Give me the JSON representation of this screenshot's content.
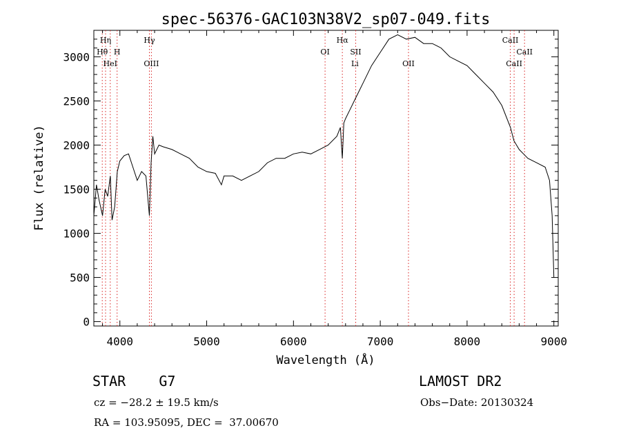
{
  "chart_data": {
    "type": "line",
    "title": "spec-56376-GAC103N38V2_sp07-049.fits",
    "xlabel": "Wavelength (Å)",
    "ylabel": "Flux (relative)",
    "xlim": [
      3700,
      9050
    ],
    "ylim": [
      -50,
      3300
    ],
    "xticks": [
      4000,
      5000,
      6000,
      7000,
      8000,
      9000
    ],
    "yticks": [
      0,
      500,
      1000,
      1500,
      2000,
      2500,
      3000
    ],
    "series": [
      {
        "x": [
          3700,
          3730,
          3760,
          3800,
          3830,
          3860,
          3890,
          3910,
          3940,
          3970,
          4000,
          4050,
          4100,
          4150,
          4200,
          4250,
          4300,
          4340,
          4360,
          4380,
          4400,
          4450,
          4500,
          4600,
          4700,
          4800,
          4900,
          5000,
          5100,
          5170,
          5200,
          5300,
          5400,
          5500,
          5600,
          5700,
          5800,
          5900,
          6000,
          6100,
          6200,
          6300,
          6400,
          6500,
          6540,
          6563,
          6580,
          6600,
          6650,
          6700,
          6750,
          6800,
          6900,
          7000,
          7100,
          7200,
          7300,
          7400,
          7500,
          7600,
          7700,
          7800,
          7900,
          8000,
          8100,
          8200,
          8300,
          8400,
          8500,
          8540,
          8600,
          8650,
          8700,
          8800,
          8900,
          8950,
          8980,
          9000
        ],
        "y": [
          1200,
          1550,
          1380,
          1200,
          1500,
          1420,
          1650,
          1150,
          1300,
          1700,
          1820,
          1880,
          1900,
          1750,
          1600,
          1700,
          1650,
          1200,
          1800,
          2100,
          1900,
          2000,
          1980,
          1950,
          1900,
          1850,
          1750,
          1700,
          1680,
          1550,
          1650,
          1650,
          1600,
          1650,
          1700,
          1800,
          1850,
          1850,
          1900,
          1920,
          1900,
          1950,
          2000,
          2100,
          2200,
          1850,
          2250,
          2300,
          2400,
          2500,
          2600,
          2700,
          2900,
          3050,
          3200,
          3250,
          3200,
          3220,
          3150,
          3150,
          3100,
          3000,
          2950,
          2900,
          2800,
          2700,
          2600,
          2450,
          2200,
          2050,
          1950,
          1900,
          1850,
          1800,
          1750,
          1600,
          1200,
          500
        ]
      }
    ],
    "line_labels": [
      {
        "label": "Hη",
        "wavelength": 3835,
        "row": 1
      },
      {
        "label": "Hθ",
        "wavelength": 3797,
        "row": 2
      },
      {
        "label": "H",
        "wavelength": 3968,
        "row": 2
      },
      {
        "label": "HeI",
        "wavelength": 3889,
        "row": 3
      },
      {
        "label": "Hγ",
        "wavelength": 4340,
        "row": 1
      },
      {
        "label": "OIII",
        "wavelength": 4363,
        "row": 3
      },
      {
        "label": "OI",
        "wavelength": 6364,
        "row": 2
      },
      {
        "label": "Hα",
        "wavelength": 6563,
        "row": 1
      },
      {
        "label": "SII",
        "wavelength": 6717,
        "row": 2
      },
      {
        "label": "Li",
        "wavelength": 6708,
        "row": 3
      },
      {
        "label": "OII",
        "wavelength": 7325,
        "row": 3
      },
      {
        "label": "CaII",
        "wavelength": 8498,
        "row": 1
      },
      {
        "label": "CaII",
        "wavelength": 8662,
        "row": 2
      },
      {
        "label": "CaII",
        "wavelength": 8542,
        "row": 3
      }
    ],
    "line_markers": [
      3797,
      3835,
      3889,
      3968,
      4340,
      4363,
      6364,
      6563,
      6717,
      7325,
      8498,
      8542,
      8662
    ],
    "grid": false,
    "legend": "none"
  },
  "info": {
    "object": "STAR    G7",
    "survey": "LAMOST DR2",
    "velocity": "cz = −28.2 ± 19.5 km/s",
    "obs_date": "Obs−Date: 20130324",
    "coords": "RA = 103.95095, DEC =  37.00670"
  },
  "colors": {
    "spectrum": "#000000",
    "marker": "#d92020",
    "text": "#000000"
  }
}
